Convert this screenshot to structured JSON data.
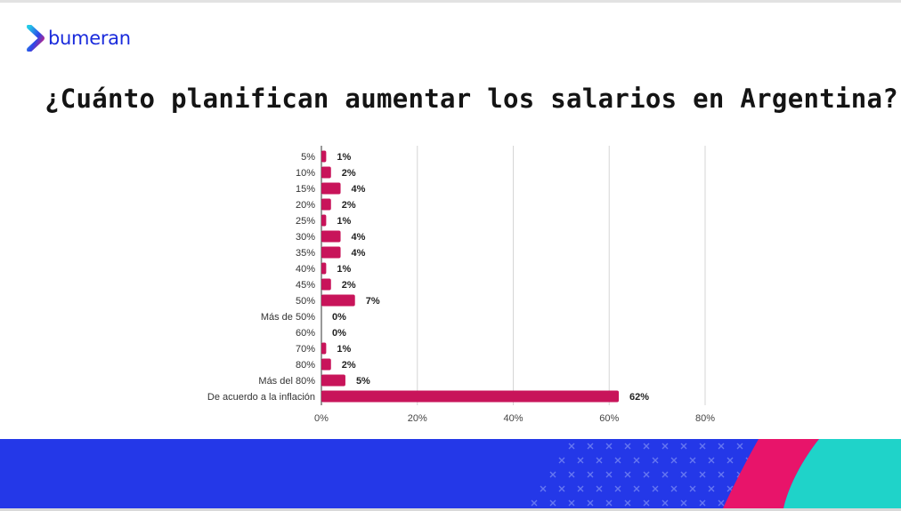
{
  "brand": {
    "name": "bumeran",
    "logo_icon": "chevron-logo-icon",
    "color": "#1a2bdc"
  },
  "title": "¿Cuánto planifican aumentar los salarios en Argentina?",
  "colors": {
    "bar": "#c8145a",
    "footer_blue": "#2438e8",
    "footer_pink": "#e8146a",
    "footer_teal": "#1fd3c9",
    "grid": "#d6d6d6"
  },
  "chart_data": {
    "type": "bar",
    "orientation": "horizontal",
    "title": "",
    "xlabel": "",
    "ylabel": "",
    "categories": [
      "5%",
      "10%",
      "15%",
      "20%",
      "25%",
      "30%",
      "35%",
      "40%",
      "45%",
      "50%",
      "Más de 50%",
      "60%",
      "70%",
      "80%",
      "Más del 80%",
      "De acuerdo a la inflación"
    ],
    "values": [
      1,
      2,
      4,
      2,
      1,
      4,
      4,
      1,
      2,
      7,
      0,
      0,
      1,
      2,
      5,
      62
    ],
    "data_labels": [
      "1%",
      "2%",
      "4%",
      "2%",
      "1%",
      "4%",
      "4%",
      "1%",
      "2%",
      "7%",
      "0%",
      "0%",
      "1%",
      "2%",
      "5%",
      "62%"
    ],
    "xlim": [
      0,
      80
    ],
    "x_ticks": [
      0,
      20,
      40,
      60,
      80
    ],
    "x_tick_labels": [
      "0%",
      "20%",
      "40%",
      "60%",
      "80%"
    ],
    "grid": true,
    "legend": "none"
  }
}
